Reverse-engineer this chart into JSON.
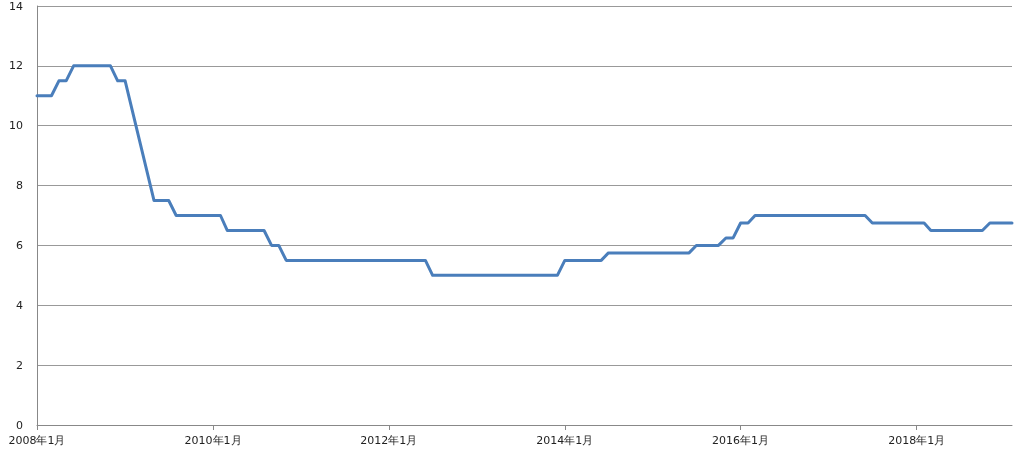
{
  "chart_data": {
    "type": "line",
    "x": [
      "2008-01",
      "2008-03",
      "2008-04",
      "2008-05",
      "2008-06",
      "2008-11",
      "2008-12",
      "2009-01",
      "2009-05",
      "2009-07",
      "2009-08",
      "2010-02",
      "2010-03",
      "2010-08",
      "2010-09",
      "2010-10",
      "2010-11",
      "2012-06",
      "2012-07",
      "2013-12",
      "2014-01",
      "2014-06",
      "2014-07",
      "2015-06",
      "2015-07",
      "2015-10",
      "2015-11",
      "2015-12",
      "2016-01",
      "2016-02",
      "2016-03",
      "2017-06",
      "2017-07",
      "2018-02",
      "2018-03",
      "2018-10",
      "2018-11",
      "2019-02"
    ],
    "series": [
      {
        "color": "#4a7ebb",
        "values": [
          11,
          11,
          11.5,
          11.5,
          12,
          12,
          11.5,
          11.5,
          7.5,
          7.5,
          7,
          7,
          6.5,
          6.5,
          6,
          6,
          5.5,
          5.5,
          5,
          5,
          5.5,
          5.5,
          5.75,
          5.75,
          6,
          6,
          6.25,
          6.25,
          6.75,
          6.75,
          7,
          7,
          6.75,
          6.75,
          6.5,
          6.5,
          6.75,
          6.75
        ]
      }
    ],
    "xlim": [
      "2008-01",
      "2019-02"
    ],
    "xticks": [
      {
        "value": "2008-01",
        "label": "2008年1月"
      },
      {
        "value": "2010-01",
        "label": "2010年1月"
      },
      {
        "value": "2012-01",
        "label": "2012年1月"
      },
      {
        "value": "2014-01",
        "label": "2014年1月"
      },
      {
        "value": "2016-01",
        "label": "2016年1月"
      },
      {
        "value": "2018-01",
        "label": "2018年1月"
      }
    ],
    "ylim": [
      0,
      14
    ],
    "yticks": [
      0,
      2,
      4,
      6,
      8,
      10,
      12,
      14
    ],
    "grid": "y",
    "marker": "none",
    "line_style": "solid"
  }
}
